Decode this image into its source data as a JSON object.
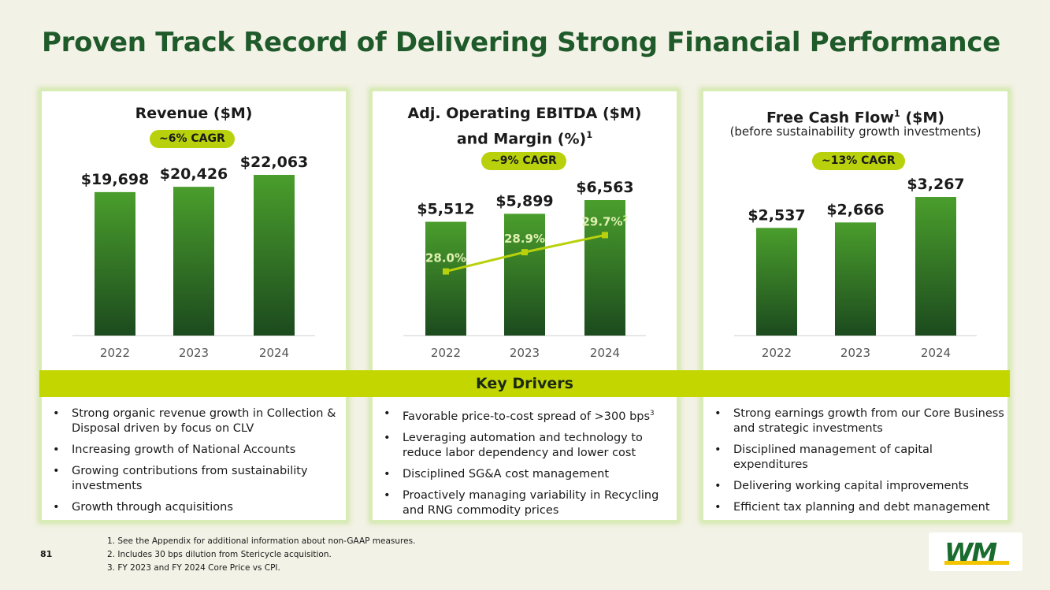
{
  "title": "Proven Track Record of Delivering Strong Financial Performance",
  "colors": {
    "title": "#1f5a2a",
    "accent": "#b8d10c",
    "bar_top": "#4a9e2c",
    "bar_bottom": "#1c4a1e",
    "line": "#b8d10c"
  },
  "panels": [
    {
      "title": "Revenue ($M)",
      "subtitle": "",
      "title_sup": "",
      "cagr": "~6% CAGR"
    },
    {
      "title_line1": "Adj. Operating EBITDA ($M)",
      "title_line2": "and Margin (%)",
      "title_sup": "1",
      "cagr": "~9% CAGR"
    },
    {
      "title": "Free Cash Flow",
      "title_sup": "1",
      "title_suffix": " ($M)",
      "subtitle": "(before sustainability growth investments)",
      "cagr": "~13% CAGR"
    }
  ],
  "chart_data": [
    {
      "type": "bar",
      "title": "Revenue ($M)",
      "categories": [
        "2022",
        "2023",
        "2024"
      ],
      "values": [
        19698,
        20426,
        22063
      ],
      "labels": [
        "$19,698",
        "$20,426",
        "$22,063"
      ],
      "ylim": [
        0,
        22063
      ]
    },
    {
      "type": "bar+line",
      "title": "Adj. Operating EBITDA ($M) and Margin (%)",
      "categories": [
        "2022",
        "2023",
        "2024"
      ],
      "values": [
        5512,
        5899,
        6563
      ],
      "labels": [
        "$5,512",
        "$5,899",
        "$6,563"
      ],
      "margin_values": [
        28.0,
        28.9,
        29.7
      ],
      "margin_labels": [
        "28.0%",
        "28.9%",
        "29.7%"
      ],
      "margin_last_sup": "2",
      "margin_ylim": [
        25.0,
        32.0
      ],
      "ylim": [
        0,
        6563
      ]
    },
    {
      "type": "bar",
      "title": "Free Cash Flow ($M)",
      "categories": [
        "2022",
        "2023",
        "2024"
      ],
      "values": [
        2537,
        2666,
        3267
      ],
      "labels": [
        "$2,537",
        "$2,666",
        "$3,267"
      ],
      "ylim": [
        0,
        3267
      ]
    }
  ],
  "key_drivers_title": "Key Drivers",
  "drivers": [
    [
      "Strong organic revenue growth in Collection & Disposal driven by focus on CLV",
      "Increasing growth of National Accounts",
      "Growing contributions from sustainability investments",
      "Growth through acquisitions"
    ],
    [
      "Favorable price-to-cost spread of >300 bps",
      "Leveraging automation and technology to reduce labor dependency and lower cost",
      "Disciplined SG&A cost management",
      "Proactively managing variability in Recycling and RNG commodity prices"
    ],
    [
      "Strong earnings growth from our Core Business and strategic investments",
      "Disciplined management of capital expenditures",
      "Delivering working capital improvements",
      "Efficient tax planning and debt management"
    ]
  ],
  "driver_sup": "3",
  "footnotes": [
    "1. See the Appendix for additional information about non-GAAP measures.",
    "2. Includes 30 bps dilution from Stericycle acquisition.",
    "3. FY 2023 and FY 2024 Core Price vs CPI."
  ],
  "page_number": "81",
  "logo_text": "WM"
}
